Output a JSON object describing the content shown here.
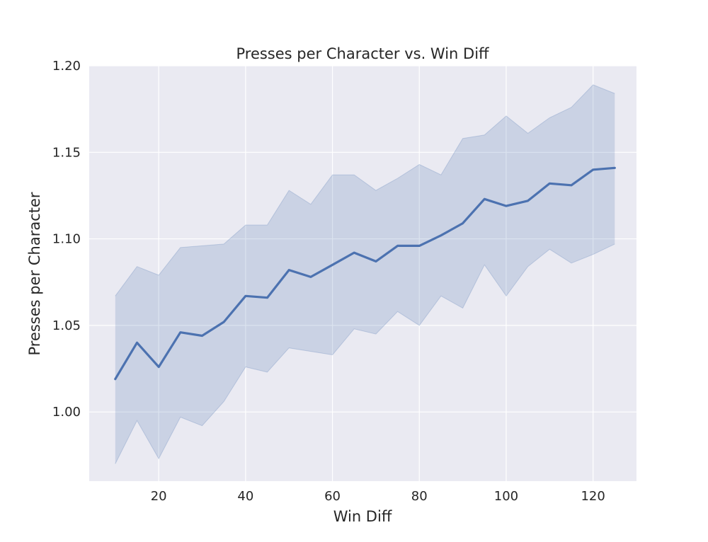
{
  "chart_data": {
    "type": "line",
    "title": "Presses per Character vs. Win Diff",
    "xlabel": "Win Diff",
    "ylabel": "Presses per Character",
    "xlim": [
      4,
      130
    ],
    "ylim": [
      0.96,
      1.2
    ],
    "xticks": [
      20,
      40,
      60,
      80,
      100,
      120
    ],
    "yticks": [
      1.0,
      1.05,
      1.1,
      1.15,
      1.2
    ],
    "xtick_labels": [
      "20",
      "40",
      "60",
      "80",
      "100",
      "120"
    ],
    "ytick_labels": [
      "1.00",
      "1.05",
      "1.10",
      "1.15",
      "1.20"
    ],
    "grid": true,
    "series": [
      {
        "color": "#4c72b0",
        "band_color": "#4c72b0",
        "x": [
          10,
          15,
          20,
          25,
          30,
          35,
          40,
          45,
          50,
          55,
          60,
          65,
          70,
          75,
          80,
          85,
          90,
          95,
          100,
          105,
          110,
          115,
          120,
          125
        ],
        "y": [
          1.019,
          1.04,
          1.026,
          1.046,
          1.044,
          1.052,
          1.067,
          1.066,
          1.082,
          1.078,
          1.085,
          1.092,
          1.087,
          1.096,
          1.096,
          1.102,
          1.109,
          1.123,
          1.119,
          1.122,
          1.132,
          1.131,
          1.14,
          1.141
        ],
        "lower": [
          0.97,
          0.995,
          0.973,
          0.997,
          0.992,
          1.006,
          1.026,
          1.023,
          1.037,
          1.035,
          1.033,
          1.048,
          1.045,
          1.058,
          1.05,
          1.067,
          1.06,
          1.085,
          1.067,
          1.084,
          1.094,
          1.086,
          1.091,
          1.097
        ],
        "upper": [
          1.067,
          1.084,
          1.079,
          1.095,
          1.096,
          1.097,
          1.108,
          1.108,
          1.128,
          1.12,
          1.137,
          1.137,
          1.128,
          1.135,
          1.143,
          1.137,
          1.158,
          1.16,
          1.171,
          1.161,
          1.17,
          1.176,
          1.189,
          1.184
        ]
      }
    ]
  },
  "style": {
    "plot_background": "#eaeaf2",
    "grid_color": "#ffffff"
  }
}
